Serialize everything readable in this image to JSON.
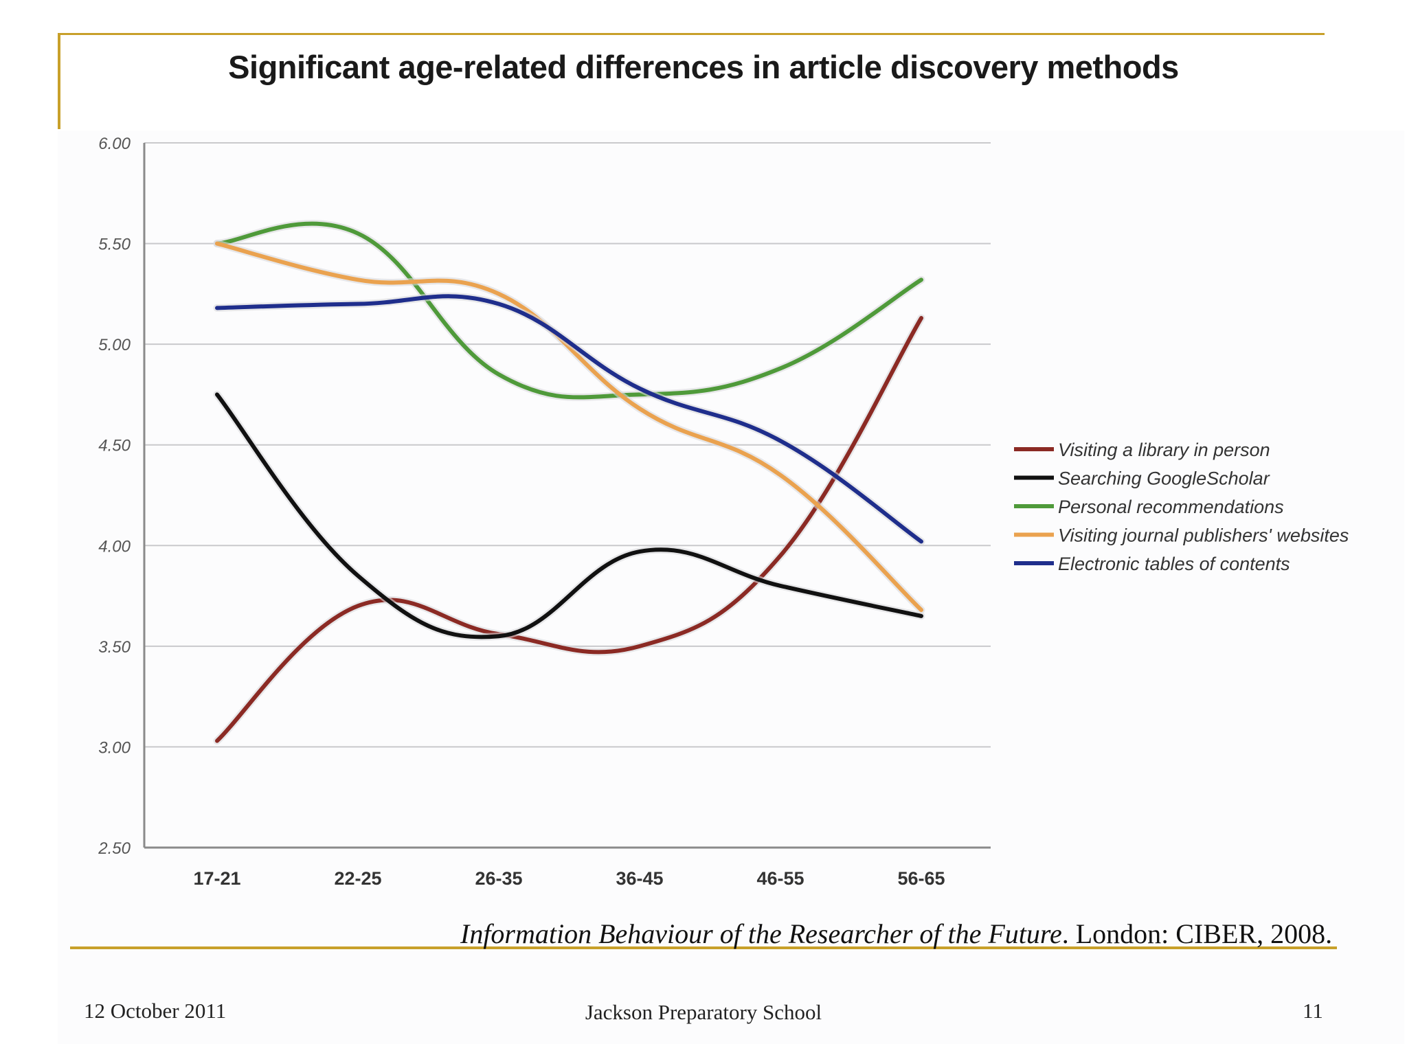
{
  "slide": {
    "footer_date": "12  October 2011",
    "footer_school": "Jackson Preparatory School",
    "page_number": "11",
    "citation_italic": "Information Behaviour of the Researcher of the Future",
    "citation_rest": ". London: CIBER, 2008.",
    "accent_color": "#c8a02a"
  },
  "chart_data": {
    "type": "line",
    "title": "Significant age-related differences in article discovery methods",
    "xlabel": "",
    "ylabel": "",
    "categories": [
      "17-21",
      "22-25",
      "26-35",
      "36-45",
      "46-55",
      "56-65"
    ],
    "ylim": [
      2.5,
      6.0
    ],
    "yticks": [
      "2.50",
      "3.00",
      "3.50",
      "4.00",
      "4.50",
      "5.00",
      "5.50",
      "6.00"
    ],
    "grid": true,
    "legend_position": "right",
    "series": [
      {
        "name": "Visiting a library in person",
        "color": "#8b2a24",
        "values": [
          3.03,
          3.7,
          3.56,
          3.5,
          3.95,
          5.13
        ]
      },
      {
        "name": "Searching GoogleScholar",
        "color": "#111111",
        "values": [
          4.75,
          3.85,
          3.55,
          3.97,
          3.8,
          3.65
        ]
      },
      {
        "name": "Personal recommendations",
        "color": "#4f9a3a",
        "values": [
          5.5,
          5.55,
          4.85,
          4.75,
          4.88,
          5.32
        ]
      },
      {
        "name": "Visiting journal publishers' websites",
        "color": "#eaa24f",
        "values": [
          5.5,
          5.32,
          5.25,
          4.68,
          4.35,
          3.68
        ]
      },
      {
        "name": "Electronic tables of contents",
        "color": "#1f2e8c",
        "values": [
          5.18,
          5.2,
          5.2,
          4.78,
          4.52,
          4.02
        ]
      }
    ]
  }
}
